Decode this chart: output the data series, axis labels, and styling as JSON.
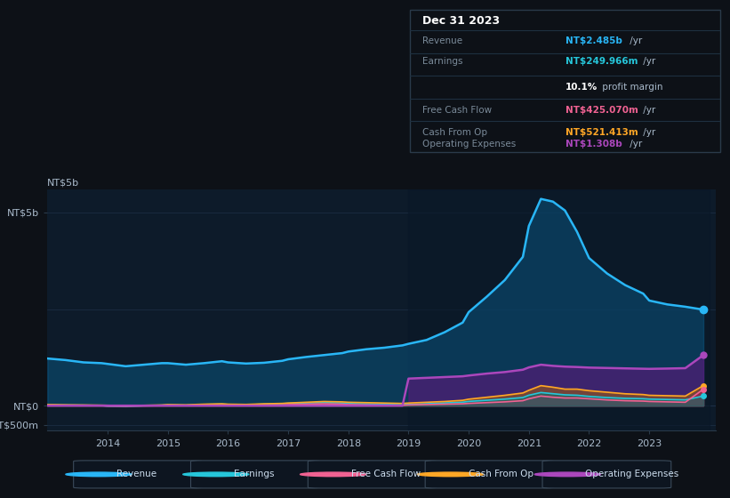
{
  "bg_color": "#0d1117",
  "chart_bg": "#0d1b2a",
  "text_color": "#ffffff",
  "dim_text": "#7a8a99",
  "revenue_color": "#29b6f6",
  "earnings_color": "#26c6da",
  "fcf_color": "#f06292",
  "cashop_color": "#ffa726",
  "opex_color": "#ab47bc",
  "years": [
    2013.0,
    2013.3,
    2013.6,
    2013.9,
    2014.0,
    2014.3,
    2014.6,
    2014.9,
    2015.0,
    2015.3,
    2015.6,
    2015.9,
    2016.0,
    2016.3,
    2016.6,
    2016.9,
    2017.0,
    2017.3,
    2017.6,
    2017.9,
    2018.0,
    2018.3,
    2018.6,
    2018.9,
    2019.0,
    2019.3,
    2019.6,
    2019.9,
    2020.0,
    2020.3,
    2020.6,
    2020.9,
    2021.0,
    2021.2,
    2021.4,
    2021.6,
    2021.8,
    2022.0,
    2022.3,
    2022.6,
    2022.9,
    2023.0,
    2023.3,
    2023.6,
    2023.9
  ],
  "revenue": [
    1.22,
    1.18,
    1.12,
    1.1,
    1.08,
    1.02,
    1.06,
    1.1,
    1.1,
    1.06,
    1.1,
    1.15,
    1.12,
    1.09,
    1.11,
    1.16,
    1.2,
    1.26,
    1.31,
    1.36,
    1.4,
    1.46,
    1.5,
    1.56,
    1.6,
    1.7,
    1.9,
    2.15,
    2.42,
    2.82,
    3.25,
    3.85,
    4.65,
    5.35,
    5.28,
    5.05,
    4.5,
    3.82,
    3.42,
    3.12,
    2.9,
    2.72,
    2.62,
    2.56,
    2.485
  ],
  "earnings": [
    0.02,
    0.015,
    0.01,
    0.005,
    -0.01,
    -0.02,
    0.0,
    0.01,
    0.02,
    0.01,
    0.03,
    0.04,
    0.03,
    0.02,
    0.04,
    0.05,
    0.06,
    0.07,
    0.08,
    0.07,
    0.055,
    0.045,
    0.035,
    0.025,
    0.03,
    0.05,
    0.07,
    0.09,
    0.11,
    0.14,
    0.17,
    0.21,
    0.27,
    0.34,
    0.31,
    0.28,
    0.27,
    0.24,
    0.21,
    0.19,
    0.18,
    0.17,
    0.16,
    0.15,
    0.25
  ],
  "free_cash_flow": [
    0.01,
    0.008,
    0.005,
    0.002,
    -0.01,
    -0.015,
    -0.005,
    0.003,
    0.008,
    0.004,
    0.012,
    0.018,
    0.012,
    0.008,
    0.018,
    0.022,
    0.028,
    0.038,
    0.048,
    0.038,
    0.028,
    0.018,
    0.012,
    0.008,
    0.018,
    0.028,
    0.038,
    0.048,
    0.058,
    0.078,
    0.098,
    0.128,
    0.178,
    0.248,
    0.218,
    0.198,
    0.198,
    0.178,
    0.148,
    0.128,
    0.118,
    0.108,
    0.098,
    0.088,
    0.425
  ],
  "cash_from_op": [
    0.028,
    0.022,
    0.018,
    0.012,
    0.008,
    0.004,
    0.008,
    0.018,
    0.028,
    0.022,
    0.038,
    0.048,
    0.038,
    0.032,
    0.048,
    0.058,
    0.068,
    0.088,
    0.108,
    0.098,
    0.088,
    0.078,
    0.068,
    0.058,
    0.068,
    0.088,
    0.108,
    0.138,
    0.168,
    0.218,
    0.268,
    0.328,
    0.398,
    0.518,
    0.478,
    0.428,
    0.428,
    0.388,
    0.348,
    0.308,
    0.288,
    0.268,
    0.258,
    0.248,
    0.521
  ],
  "op_expenses": [
    0.0,
    0.0,
    0.0,
    0.0,
    0.0,
    0.0,
    0.0,
    0.0,
    0.0,
    0.0,
    0.0,
    0.0,
    0.0,
    0.0,
    0.0,
    0.0,
    0.0,
    0.0,
    0.0,
    0.0,
    0.0,
    0.0,
    0.0,
    0.0,
    0.7,
    0.72,
    0.74,
    0.76,
    0.78,
    0.83,
    0.87,
    0.93,
    0.99,
    1.06,
    1.03,
    1.01,
    1.0,
    0.985,
    0.975,
    0.965,
    0.955,
    0.952,
    0.96,
    0.97,
    1.308
  ],
  "legend_items": [
    {
      "label": "Revenue",
      "color": "#29b6f6"
    },
    {
      "label": "Earnings",
      "color": "#26c6da"
    },
    {
      "label": "Free Cash Flow",
      "color": "#f06292"
    },
    {
      "label": "Cash From Op",
      "color": "#ffa726"
    },
    {
      "label": "Operating Expenses",
      "color": "#ab47bc"
    }
  ],
  "info_rows": [
    {
      "label": "Revenue",
      "value": "NT$2.485b",
      "suffix": " /yr",
      "value_color": "#29b6f6"
    },
    {
      "label": "Earnings",
      "value": "NT$249.966m",
      "suffix": " /yr",
      "value_color": "#26c6da"
    },
    {
      "label": "",
      "value": "10.1%",
      "suffix": " profit margin",
      "value_color": "#ffffff"
    },
    {
      "label": "Free Cash Flow",
      "value": "NT$425.070m",
      "suffix": " /yr",
      "value_color": "#f06292"
    },
    {
      "label": "Cash From Op",
      "value": "NT$521.413m",
      "suffix": " /yr",
      "value_color": "#ffa726"
    },
    {
      "label": "Operating Expenses",
      "value": "NT$1.308b",
      "suffix": " /yr",
      "value_color": "#ab47bc"
    }
  ]
}
